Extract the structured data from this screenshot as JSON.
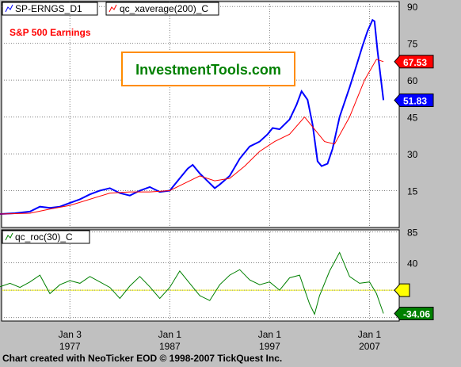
{
  "colors": {
    "frame_bg": "#c0c0c0",
    "plot_bg": "#ffffff",
    "price_line": "#0000ff",
    "average_line": "#ff0000",
    "roc_line": "#008000",
    "roc_zero_line": "#ffff00",
    "label_red": "#ff0000",
    "label_blue": "#0000ff",
    "label_green": "#008000",
    "label_yellow": "#ffff00",
    "watermark_border": "#ff8c00",
    "watermark_text": "#008000",
    "title_text": "#ff0000"
  },
  "legend": {
    "series1": "SP-ERNGS_D1",
    "series2": "qc_xaverage(200)_C",
    "roc": "qc_roc(30)_C"
  },
  "watermark": "InvestmentTools.com",
  "footer": "Chart created with NeoTicker EOD © 1998-2007 TickQuest Inc.",
  "chart_data": [
    {
      "type": "line",
      "title": "S&P 500 Earnings",
      "y_ticks": [
        15,
        30,
        45,
        60,
        75,
        90
      ],
      "ylim": [
        0,
        92
      ],
      "xlim": [
        1970,
        2009.5
      ],
      "x_ticks": [
        {
          "x": 1977,
          "line1": "Jan 3",
          "line2": "1977"
        },
        {
          "x": 1987,
          "line1": "Jan 1",
          "line2": "1987"
        },
        {
          "x": 1997,
          "line1": "Jan 1",
          "line2": "1997"
        },
        {
          "x": 2007,
          "line1": "Jan 1",
          "line2": "2007"
        }
      ],
      "series": [
        {
          "key": "price",
          "color_key": "price_line",
          "points": [
            [
              1970,
              5.5
            ],
            [
              1971.5,
              5.8
            ],
            [
              1973,
              6.5
            ],
            [
              1974,
              8.5
            ],
            [
              1975,
              8.0
            ],
            [
              1976,
              8.5
            ],
            [
              1977,
              10
            ],
            [
              1978,
              11.5
            ],
            [
              1979,
              13.5
            ],
            [
              1980,
              15
            ],
            [
              1981,
              16
            ],
            [
              1982,
              14
            ],
            [
              1983,
              13
            ],
            [
              1984,
              15
            ],
            [
              1985,
              16.5
            ],
            [
              1986,
              14.5
            ],
            [
              1987,
              15
            ],
            [
              1988,
              20
            ],
            [
              1988.8,
              24
            ],
            [
              1989.3,
              25.5
            ],
            [
              1990,
              22
            ],
            [
              1991,
              18
            ],
            [
              1991.5,
              16
            ],
            [
              1992,
              17.5
            ],
            [
              1993,
              21
            ],
            [
              1994,
              28
            ],
            [
              1995,
              33
            ],
            [
              1996,
              35
            ],
            [
              1996.8,
              38
            ],
            [
              1997.3,
              40.5
            ],
            [
              1998,
              40
            ],
            [
              1999,
              44
            ],
            [
              1999.7,
              50
            ],
            [
              2000.2,
              55.5
            ],
            [
              2000.8,
              52
            ],
            [
              2001.3,
              42
            ],
            [
              2001.8,
              27
            ],
            [
              2002.2,
              25
            ],
            [
              2002.8,
              26
            ],
            [
              2003.3,
              32
            ],
            [
              2004,
              45
            ],
            [
              2005,
              57
            ],
            [
              2005.7,
              66
            ],
            [
              2006.3,
              74
            ],
            [
              2006.8,
              80
            ],
            [
              2007.3,
              84.5
            ],
            [
              2007.5,
              84
            ],
            [
              2007.8,
              72
            ],
            [
              2008.1,
              62
            ],
            [
              2008.4,
              51.83
            ]
          ]
        },
        {
          "key": "average",
          "color_key": "average_line",
          "points": [
            [
              1970,
              5.5
            ],
            [
              1973,
              5.8
            ],
            [
              1975,
              7.5
            ],
            [
              1977,
              9
            ],
            [
              1979,
              11.5
            ],
            [
              1981,
              14
            ],
            [
              1983,
              14.5
            ],
            [
              1985,
              14.5
            ],
            [
              1987,
              15
            ],
            [
              1988.5,
              18
            ],
            [
              1990,
              21
            ],
            [
              1991.5,
              19
            ],
            [
              1993,
              20
            ],
            [
              1994.5,
              25
            ],
            [
              1996,
              31
            ],
            [
              1997.5,
              35
            ],
            [
              1999,
              38
            ],
            [
              2000.5,
              45
            ],
            [
              2001.5,
              40
            ],
            [
              2002.5,
              35
            ],
            [
              2003.5,
              34
            ],
            [
              2005,
              45
            ],
            [
              2006.5,
              60
            ],
            [
              2007.7,
              68.5
            ],
            [
              2008.4,
              67.53
            ]
          ]
        }
      ],
      "value_labels": [
        {
          "text": "67.53",
          "value": 67.53,
          "color_key": "label_red"
        },
        {
          "text": "51.83",
          "value": 51.83,
          "color_key": "label_blue"
        }
      ]
    },
    {
      "type": "line",
      "y_ticks": [
        -40,
        0,
        40,
        85
      ],
      "y_tick_labels": [
        "",
        "",
        "40",
        "85"
      ],
      "ylim": [
        -45,
        88
      ],
      "xlim": [
        1970,
        2009.5
      ],
      "series": [
        {
          "key": "roc",
          "color_key": "roc_line",
          "points": [
            [
              1970,
              5
            ],
            [
              1971,
              10
            ],
            [
              1972,
              4
            ],
            [
              1973,
              12
            ],
            [
              1974,
              22
            ],
            [
              1975,
              -5
            ],
            [
              1976,
              8
            ],
            [
              1977,
              14
            ],
            [
              1978,
              10
            ],
            [
              1979,
              20
            ],
            [
              1980,
              12
            ],
            [
              1981,
              4
            ],
            [
              1982,
              -12
            ],
            [
              1983,
              6
            ],
            [
              1984,
              20
            ],
            [
              1985,
              5
            ],
            [
              1986,
              -12
            ],
            [
              1987,
              4
            ],
            [
              1988,
              28
            ],
            [
              1989,
              10
            ],
            [
              1990,
              -8
            ],
            [
              1991,
              -15
            ],
            [
              1992,
              8
            ],
            [
              1993,
              22
            ],
            [
              1994,
              30
            ],
            [
              1995,
              15
            ],
            [
              1996,
              8
            ],
            [
              1997,
              12
            ],
            [
              1998,
              0
            ],
            [
              1999,
              18
            ],
            [
              2000,
              22
            ],
            [
              2001,
              -20
            ],
            [
              2001.5,
              -35
            ],
            [
              2002,
              -8
            ],
            [
              2003,
              28
            ],
            [
              2004,
              55
            ],
            [
              2005,
              20
            ],
            [
              2006,
              10
            ],
            [
              2007,
              12
            ],
            [
              2007.7,
              -5
            ],
            [
              2008.4,
              -34.06
            ]
          ]
        }
      ],
      "value_labels": [
        {
          "text": "",
          "value": 0,
          "color_key": "label_yellow"
        },
        {
          "text": "-34.06",
          "value": -34.06,
          "color_key": "label_green"
        }
      ]
    }
  ]
}
